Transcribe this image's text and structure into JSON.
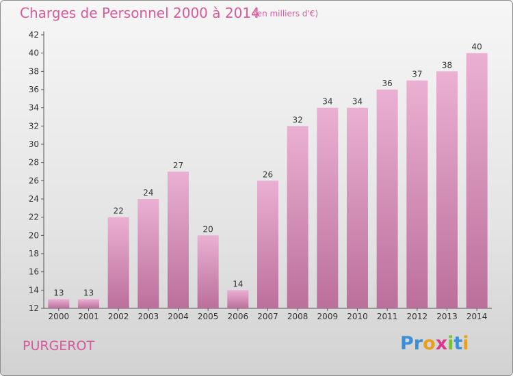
{
  "title": "Charges de Personnel 2000 à 2014",
  "subtitle": "(en milliers d'€)",
  "location": "PURGEROT",
  "logo": {
    "text": "Proxiti",
    "letters": [
      {
        "char": "P",
        "color": "#3a8fd6"
      },
      {
        "char": "r",
        "color": "#3a8fd6"
      },
      {
        "char": "o",
        "color": "#e8a020"
      },
      {
        "char": "x",
        "color": "#d83a8a"
      },
      {
        "char": "i",
        "color": "#7cbf3a"
      },
      {
        "char": "t",
        "color": "#3a8fd6"
      },
      {
        "char": "i",
        "color": "#e8a020"
      }
    ]
  },
  "colors": {
    "bar_top": "#eab0d2",
    "bar_bottom": "#bb6f9b",
    "text_accent": "#d85a9a",
    "axis_text": "#333333"
  },
  "chart_data": {
    "type": "bar",
    "categories": [
      "2000",
      "2001",
      "2002",
      "2003",
      "2004",
      "2005",
      "2006",
      "2007",
      "2008",
      "2009",
      "2010",
      "2011",
      "2012",
      "2013",
      "2014"
    ],
    "values": [
      13,
      13,
      22,
      24,
      27,
      20,
      14,
      26,
      32,
      34,
      34,
      36,
      37,
      38,
      40
    ],
    "data_labels": [
      "13",
      "13",
      "22",
      "24",
      "27",
      "20",
      "14",
      "26",
      "32",
      "34",
      "34",
      "36",
      "37",
      "38",
      "40"
    ],
    "yticks": [
      "12",
      "14",
      "16",
      "18",
      "20",
      "22",
      "24",
      "26",
      "28",
      "30",
      "32",
      "34",
      "36",
      "38",
      "40",
      "42"
    ],
    "ylim": [
      12,
      42
    ],
    "grid": false,
    "legend": "none"
  }
}
